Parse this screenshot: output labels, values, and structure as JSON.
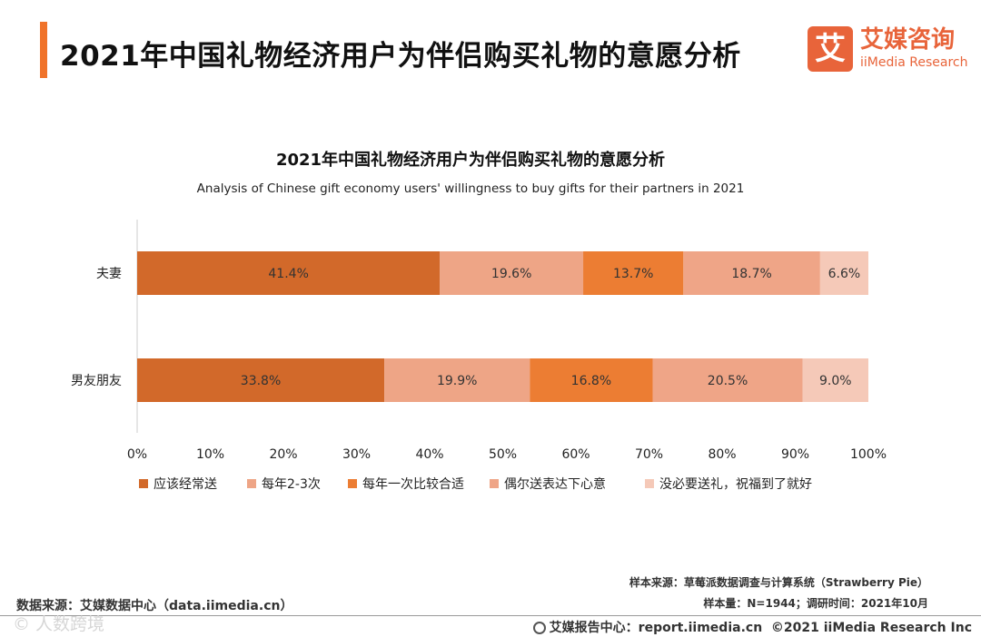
{
  "header": {
    "title": "2021年中国礼物经济用户为伴侣购买礼物的意愿分析",
    "logo_mark": "艾",
    "logo_cn": "艾媒咨询",
    "logo_en": "iiMedia Research"
  },
  "chart_data": {
    "type": "bar",
    "orientation": "horizontal",
    "stacked": true,
    "title": "2021年中国礼物经济用户为伴侣购买礼物的意愿分析",
    "subtitle": "Analysis of Chinese gift economy users' willingness to buy gifts for their partners in 2021",
    "categories": [
      "夫妻",
      "男友朋友"
    ],
    "series": [
      {
        "name": "应该经常送",
        "color": "#d2692a",
        "values": [
          41.4,
          33.8
        ],
        "labels": [
          "41.4%",
          "33.8%"
        ]
      },
      {
        "name": "每年2-3次",
        "color": "#eea586",
        "values": [
          19.6,
          19.9
        ],
        "labels": [
          "19.6%",
          "19.9%"
        ]
      },
      {
        "name": "每年一次比较合适",
        "color": "#ec7d33",
        "values": [
          13.7,
          16.8
        ],
        "labels": [
          "13.7%",
          "16.8%"
        ]
      },
      {
        "name": "偶尔送表达下心意",
        "color": "#efa587",
        "values": [
          18.7,
          20.5
        ],
        "labels": [
          "18.7%",
          "20.5%"
        ]
      },
      {
        "name": "没必要送礼，祝福到了就好",
        "color": "#f5c9b8",
        "values": [
          6.6,
          9.0
        ],
        "labels": [
          "6.6%",
          "9.0%"
        ]
      }
    ],
    "xlim": [
      0,
      100
    ],
    "xticks": [
      "0%",
      "10%",
      "20%",
      "30%",
      "40%",
      "50%",
      "60%",
      "70%",
      "80%",
      "90%",
      "100%"
    ],
    "legend_position": "bottom",
    "grid": false
  },
  "footer": {
    "source": "数据来源：艾媒数据中心（data.iimedia.cn）",
    "sample_source": "样本来源：草莓派数据调查与计算系统（Strawberry Pie）",
    "sample_size": "样本量：N=1944；调研时间：2021年10月",
    "report_center": "艾媒报告中心：report.iimedia.cn",
    "copyright": "©2021  iiMedia Research  Inc",
    "watermark": "©  人数跨境"
  }
}
